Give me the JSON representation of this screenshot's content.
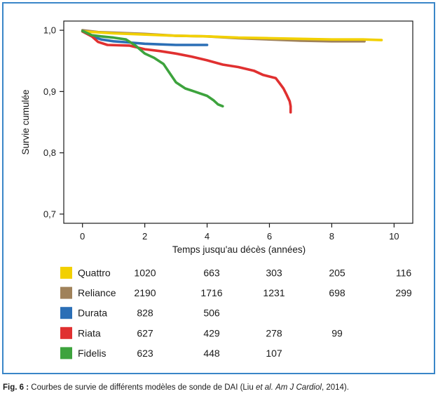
{
  "chart_data": {
    "type": "line",
    "xlabel": "Temps jusqu'au décès (années)",
    "ylabel": "Survie cumulée",
    "xlim": [
      -0.6,
      10.6
    ],
    "ylim": [
      0.685,
      1.015
    ],
    "x_ticks": [
      0,
      2,
      4,
      6,
      8,
      10
    ],
    "x_tick_labels": [
      "0",
      "2",
      "4",
      "6",
      "8",
      "10"
    ],
    "y_ticks": [
      1.0,
      0.9,
      0.8,
      0.7
    ],
    "y_tick_labels": [
      "1,0",
      "0,9",
      "0,8",
      "0,7"
    ],
    "grid": false,
    "series": [
      {
        "name": "Reliance",
        "color": "#a0825a",
        "points": [
          [
            0,
            1.0
          ],
          [
            0.5,
            0.997
          ],
          [
            1,
            0.996
          ],
          [
            2,
            0.994
          ],
          [
            3,
            0.991
          ],
          [
            4,
            0.99
          ],
          [
            5,
            0.987
          ],
          [
            6,
            0.985
          ],
          [
            7,
            0.983
          ],
          [
            8,
            0.982
          ],
          [
            9.05,
            0.982
          ]
        ]
      },
      {
        "name": "Quattro",
        "color": "#f2d000",
        "points": [
          [
            0,
            0.998
          ],
          [
            1,
            0.995
          ],
          [
            2,
            0.993
          ],
          [
            3,
            0.991
          ],
          [
            4,
            0.99
          ],
          [
            5,
            0.988
          ],
          [
            6,
            0.987
          ],
          [
            7,
            0.986
          ],
          [
            8,
            0.985
          ],
          [
            9,
            0.985
          ],
          [
            9.6,
            0.984
          ]
        ]
      },
      {
        "name": "Durata",
        "color": "#2b6fb6",
        "points": [
          [
            0,
            0.998
          ],
          [
            0.3,
            0.99
          ],
          [
            0.6,
            0.985
          ],
          [
            1,
            0.982
          ],
          [
            1.5,
            0.98
          ],
          [
            2,
            0.978
          ],
          [
            2.5,
            0.977
          ],
          [
            3,
            0.976
          ],
          [
            4,
            0.976
          ]
        ]
      },
      {
        "name": "Riata",
        "color": "#e03030",
        "points": [
          [
            0,
            0.998
          ],
          [
            0.3,
            0.99
          ],
          [
            0.5,
            0.981
          ],
          [
            0.8,
            0.976
          ],
          [
            1.5,
            0.975
          ],
          [
            2,
            0.969
          ],
          [
            2.5,
            0.966
          ],
          [
            3,
            0.962
          ],
          [
            3.5,
            0.957
          ],
          [
            4,
            0.951
          ],
          [
            4.5,
            0.944
          ],
          [
            5,
            0.94
          ],
          [
            5.5,
            0.934
          ],
          [
            5.8,
            0.927
          ],
          [
            6.2,
            0.922
          ],
          [
            6.35,
            0.912
          ],
          [
            6.45,
            0.905
          ],
          [
            6.55,
            0.895
          ],
          [
            6.65,
            0.884
          ],
          [
            6.68,
            0.876
          ],
          [
            6.68,
            0.866
          ]
        ]
      },
      {
        "name": "Fidelis",
        "color": "#3da33d",
        "points": [
          [
            0,
            0.999
          ],
          [
            0.3,
            0.992
          ],
          [
            0.6,
            0.99
          ],
          [
            1,
            0.988
          ],
          [
            1.4,
            0.985
          ],
          [
            1.7,
            0.975
          ],
          [
            2,
            0.962
          ],
          [
            2.3,
            0.955
          ],
          [
            2.6,
            0.945
          ],
          [
            2.8,
            0.93
          ],
          [
            3.0,
            0.915
          ],
          [
            3.3,
            0.905
          ],
          [
            3.6,
            0.9
          ],
          [
            4.0,
            0.893
          ],
          [
            4.2,
            0.886
          ],
          [
            4.35,
            0.879
          ],
          [
            4.5,
            0.876
          ]
        ]
      }
    ],
    "risk_table": {
      "x": [
        0,
        2,
        4,
        6,
        8,
        10
      ],
      "rows": [
        {
          "name": "Quattro",
          "color": "#f2d000",
          "values": [
            "1020",
            "663",
            "303",
            "205",
            "116"
          ]
        },
        {
          "name": "Reliance",
          "color": "#a0825a",
          "values": [
            "2190",
            "1716",
            "1231",
            "698",
            "299"
          ]
        },
        {
          "name": "Durata",
          "color": "#2b6fb6",
          "values": [
            "828",
            "506"
          ]
        },
        {
          "name": "Riata",
          "color": "#e03030",
          "values": [
            "627",
            "429",
            "278",
            "99"
          ]
        },
        {
          "name": "Fidelis",
          "color": "#3da33d",
          "values": [
            "623",
            "448",
            "107"
          ]
        }
      ]
    }
  },
  "caption": {
    "label": "Fig. 6 :",
    "text_before": " Courbes de survie de différents modèles de sonde de DAI (Liu ",
    "et_al": "et al.",
    "space": " ",
    "journal": "Am J Cardiol",
    "text_after": ", 2014)."
  },
  "colors": {
    "frame": "#3a86c8"
  }
}
